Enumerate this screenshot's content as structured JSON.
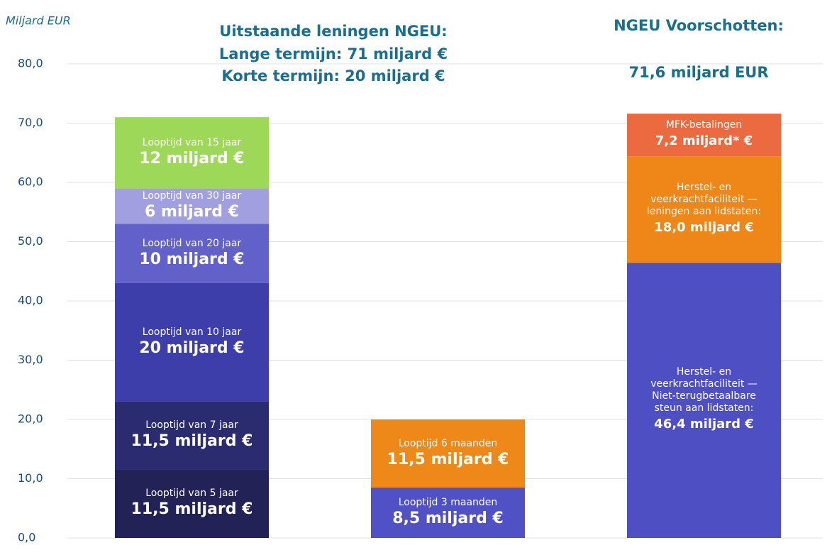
{
  "chart_data": {
    "type": "stacked_bar",
    "y_label": "Miljard EUR",
    "annotations": [
      "Uitstaande leningen NGEU:",
      "Lange termijn: 71 miljard €",
      "Korte termijn: 20 miljard €",
      "NGEU Voorschotten:",
      "71,6 miljard EUR"
    ],
    "categories": [
      null,
      null,
      null
    ],
    "ylim": [
      0,
      80
    ],
    "yticks": [
      {
        "value": 0,
        "label": "0,0"
      },
      {
        "value": 10,
        "label": "10,0"
      },
      {
        "value": 20,
        "label": "20,0"
      },
      {
        "value": 30,
        "label": "30,0"
      },
      {
        "value": 40,
        "label": "40,0"
      },
      {
        "value": 50,
        "label": "50,0"
      },
      {
        "value": 60,
        "label": "60,0"
      },
      {
        "value": 70,
        "label": "70,0"
      },
      {
        "value": 80,
        "label": "80,0"
      }
    ],
    "grid": true,
    "series": [
      {
        "name": "Looptijd van 5 jaar",
        "color": "#222257",
        "values": [
          11.5,
          null,
          null
        ],
        "value_labels": [
          "11,5 miljard €",
          null,
          null
        ]
      },
      {
        "name": "Looptijd van 7 jaar",
        "color": "#2b2b70",
        "values": [
          11.5,
          null,
          null
        ],
        "value_labels": [
          "11,5 miljard €",
          null,
          null
        ]
      },
      {
        "name": "Looptijd van 10 jaar",
        "color": "#3e3eab",
        "values": [
          20,
          null,
          null
        ],
        "value_labels": [
          "20 miljard €",
          null,
          null
        ]
      },
      {
        "name": "Looptijd van 20 jaar",
        "color": "#6161c9",
        "values": [
          10,
          null,
          null
        ],
        "value_labels": [
          "10 miljard €",
          null,
          null
        ]
      },
      {
        "name": "Looptijd van 30 jaar",
        "color": "#a19fe0",
        "values": [
          6,
          null,
          null
        ],
        "value_labels": [
          "6 miljard €",
          null,
          null
        ]
      },
      {
        "name": "Looptijd van 15 jaar",
        "color": "#9ed858",
        "values": [
          12,
          null,
          null
        ],
        "value_labels": [
          "12 miljard €",
          null,
          null
        ]
      },
      {
        "name": "Looptijd 3 maanden",
        "color": "#5151c6",
        "values": [
          null,
          8.5,
          null
        ],
        "value_labels": [
          null,
          "8,5 miljard €",
          null
        ]
      },
      {
        "name": "Looptijd 6 maanden",
        "color": "#ee8818",
        "values": [
          null,
          11.5,
          null
        ],
        "value_labels": [
          null,
          "11,5 miljard €",
          null
        ]
      },
      {
        "name": "Herstel- en veerkrachtfaciliteit — Niet-terugbetaalbare steun aan lidstaten:",
        "color": "#4f4fc4",
        "values": [
          null,
          null,
          46.4
        ],
        "value_labels": [
          null,
          null,
          "46,4 miljard €"
        ]
      },
      {
        "name": "Herstel- en veerkrachtfaciliteit — leningen aan lidstaten:",
        "color": "#ee8618",
        "values": [
          null,
          null,
          18.0
        ],
        "value_labels": [
          null,
          null,
          "18,0 miljard €"
        ]
      },
      {
        "name": "MFK-betalingen",
        "color": "#ec6a40",
        "values": [
          null,
          null,
          7.2
        ],
        "value_labels": [
          null,
          null,
          "7,2 miljard* €"
        ]
      }
    ]
  }
}
